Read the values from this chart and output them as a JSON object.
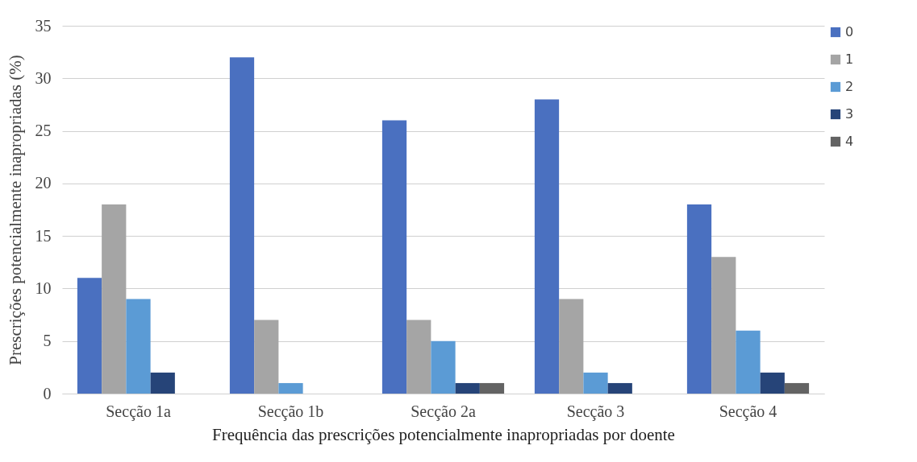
{
  "chart_data": {
    "type": "bar",
    "xlabel": "Frequência das prescrições potencialmente inapropriadas por doente",
    "ylabel": "Prescrições potencialmente inapropriadas (%)",
    "categories": [
      "Secção 1a",
      "Secção 1b",
      "Secção 2a",
      "Secção 3",
      "Secção 4"
    ],
    "series": [
      {
        "name": "0",
        "color": "#4a70c0",
        "values": [
          11,
          32,
          26,
          28,
          18
        ]
      },
      {
        "name": "1",
        "color": "#a5a5a5",
        "values": [
          18,
          7,
          7,
          9,
          13
        ]
      },
      {
        "name": "2",
        "color": "#5b9bd5",
        "values": [
          9,
          1,
          5,
          2,
          6
        ]
      },
      {
        "name": "3",
        "color": "#264478",
        "values": [
          2,
          0,
          1,
          1,
          2
        ]
      },
      {
        "name": "4",
        "color": "#636363",
        "values": [
          0,
          0,
          1,
          0,
          1
        ]
      }
    ],
    "ylim": [
      0,
      35
    ],
    "yticks": [
      0,
      5,
      10,
      15,
      20,
      25,
      30,
      35
    ],
    "grid": "y",
    "legend": "right"
  }
}
